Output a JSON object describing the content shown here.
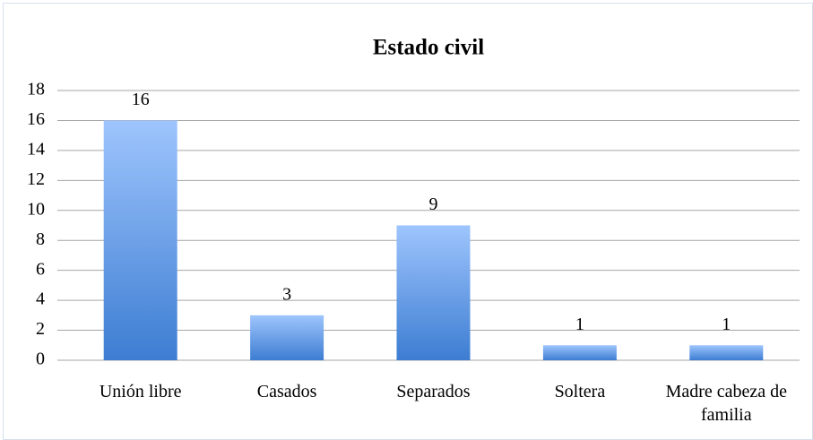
{
  "chart_data": {
    "type": "bar",
    "title": "Estado civil",
    "categories": [
      "Unión libre",
      "Casados",
      "Separados",
      "Soltera",
      "Madre cabeza de familia"
    ],
    "values": [
      16,
      3,
      9,
      1,
      1
    ],
    "ylim": [
      0,
      18
    ],
    "yticks": [
      0,
      2,
      4,
      6,
      8,
      10,
      12,
      14,
      16,
      18
    ],
    "grid": true
  }
}
